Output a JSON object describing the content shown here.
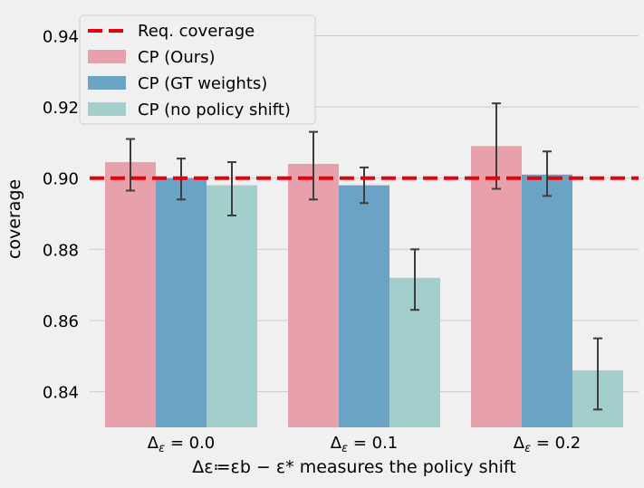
{
  "chart_data": {
    "type": "bar",
    "categories": [
      "Δε = 0.0",
      "Δε = 0.1",
      "Δε = 0.2"
    ],
    "xlabel": "Δε≔εb − ε* measures the policy shift",
    "ylabel": "coverage",
    "ylim": [
      0.83,
      0.948
    ],
    "yticks": [
      0.84,
      0.86,
      0.88,
      0.9,
      0.92,
      0.94
    ],
    "ytick_labels": [
      "0.84",
      "0.86",
      "0.88",
      "0.90",
      "0.92",
      "0.94"
    ],
    "grid": true,
    "legend_position": "top-left",
    "reference_line": {
      "label": "Req. coverage",
      "value": 0.9,
      "color": "#e8000b"
    },
    "series": [
      {
        "name": "CP (Ours)",
        "color": "#e8a0aa",
        "values": [
          0.9045,
          0.904,
          0.909
        ],
        "err_low": [
          0.8965,
          0.894,
          0.897
        ],
        "err_high": [
          0.911,
          0.913,
          0.921
        ]
      },
      {
        "name": "CP (GT weights)",
        "color": "#6ba3c4",
        "values": [
          0.9,
          0.898,
          0.901
        ],
        "err_low": [
          0.894,
          0.893,
          0.895
        ],
        "err_high": [
          0.9055,
          0.903,
          0.9075
        ]
      },
      {
        "name": "CP (no policy shift)",
        "color": "#a2cfcb",
        "values": [
          0.898,
          0.872,
          0.846
        ],
        "err_low": [
          0.8895,
          0.863,
          0.835
        ],
        "err_high": [
          0.9045,
          0.88,
          0.855
        ]
      }
    ]
  }
}
